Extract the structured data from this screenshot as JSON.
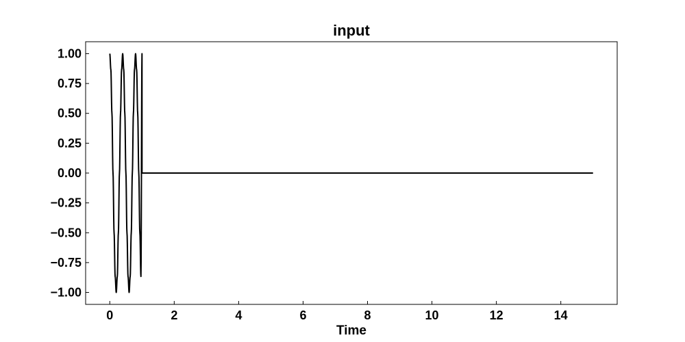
{
  "chart_data": {
    "type": "line",
    "title": "input",
    "xlabel": "Time",
    "ylabel": "",
    "xlim": [
      -0.75,
      15.75
    ],
    "ylim": [
      -1.1,
      1.1
    ],
    "x_ticks": [
      0,
      2,
      4,
      6,
      8,
      10,
      12,
      14
    ],
    "x_tick_labels": [
      "0",
      "2",
      "4",
      "6",
      "8",
      "10",
      "12",
      "14"
    ],
    "y_ticks": [
      1.0,
      0.75,
      0.5,
      0.25,
      0.0,
      -0.25,
      -0.5,
      -0.75,
      -1.0
    ],
    "y_tick_labels": [
      "1.00",
      "0.75",
      "0.50",
      "0.25",
      "0.00",
      "−0.25",
      "−0.50",
      "−0.75",
      "−1.00"
    ],
    "grid": false,
    "series": [
      {
        "color": "#000000",
        "x": [
          0,
          0.0333,
          0.0667,
          0.1,
          0.1333,
          0.1667,
          0.2,
          0.2333,
          0.2667,
          0.3,
          0.3333,
          0.3667,
          0.4,
          0.4333,
          0.4667,
          0.5,
          0.5333,
          0.5667,
          0.6,
          0.6333,
          0.6667,
          0.7,
          0.7333,
          0.7667,
          0.8,
          0.8333,
          0.8667,
          0.9,
          0.9333,
          0.9667,
          1.0,
          1.0,
          15.0
        ],
        "y": [
          1.0,
          0.866,
          0.5,
          0.0,
          -0.5,
          -0.866,
          -1.0,
          -0.866,
          -0.5,
          0.0,
          0.5,
          0.866,
          1.0,
          0.866,
          0.5,
          0.0,
          -0.5,
          -0.866,
          -1.0,
          -0.866,
          -0.5,
          0.0,
          0.5,
          0.866,
          1.0,
          0.866,
          0.5,
          0.0,
          -0.5,
          -0.866,
          1.0,
          0.0,
          0.0
        ]
      }
    ]
  }
}
